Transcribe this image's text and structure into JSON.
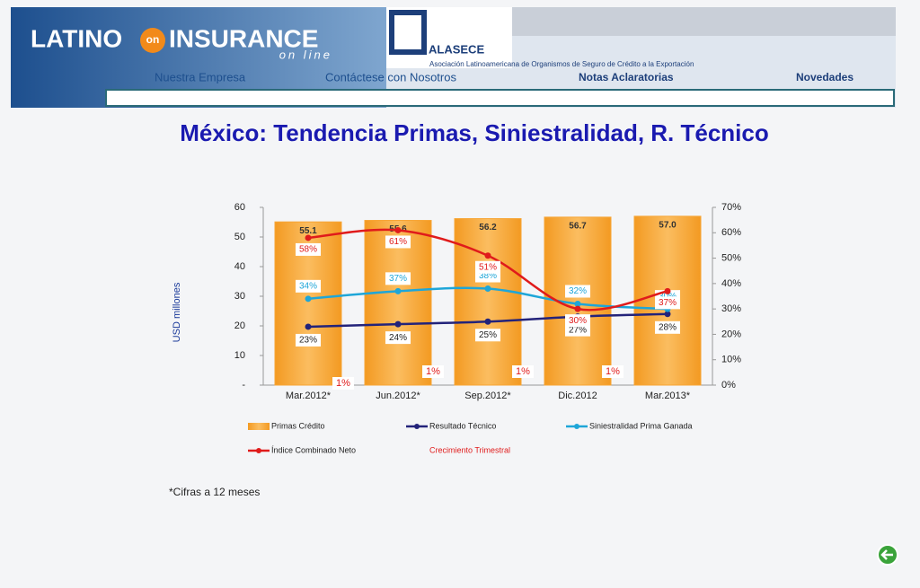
{
  "header": {
    "logo": [
      "LATINO",
      "on",
      "INSURANCE"
    ],
    "logo_sub": "on line",
    "partner": "ALASECE",
    "partner_sub": "Asociación Latinoamericana de Organismos de Seguro de Crédito a la Exportación",
    "nav": [
      "Nuestra Empresa",
      "Contáctese con Nosotros",
      "Notas Aclaratorias",
      "Novedades"
    ]
  },
  "chart_data": {
    "type": "combo",
    "title": "México: Tendencia Primas, Siniestralidad, R. Técnico",
    "ylabel": "USD millones",
    "categories": [
      "Mar.2012*",
      "Jun.2012*",
      "Sep.2012*",
      "Dic.2012",
      "Mar.2013*"
    ],
    "ylim": [
      0,
      60
    ],
    "yticks": [
      {
        "value": 0,
        "label": "-"
      },
      10,
      20,
      30,
      40,
      50,
      60
    ],
    "y2lim": [
      0,
      70
    ],
    "y2ticks": [
      {
        "value": 0,
        "label": "0%"
      },
      {
        "value": 10,
        "label": "10%"
      },
      {
        "value": 20,
        "label": "20%"
      },
      {
        "value": 30,
        "label": "30%"
      },
      {
        "value": 40,
        "label": "40%"
      },
      {
        "value": 50,
        "label": "50%"
      },
      {
        "value": 60,
        "label": "60%"
      },
      {
        "value": 70,
        "label": "70%"
      }
    ],
    "series": [
      {
        "name": "Primas Crédito",
        "kind": "bar",
        "color": "#f7a535",
        "values": [
          55.1,
          55.6,
          56.2,
          56.7,
          57.0
        ],
        "value_labels": [
          "55.1",
          "55.6",
          "56.2",
          "56.7",
          "57.0"
        ]
      },
      {
        "name": "Resultado Técnico",
        "kind": "line",
        "axis": "y2",
        "color": "#23237a",
        "values": [
          23,
          24,
          25,
          27,
          28
        ],
        "value_labels": [
          "23%",
          "24%",
          "25%",
          "27%",
          "28%"
        ]
      },
      {
        "name": "Siniestralidad Prima Ganada",
        "kind": "line",
        "axis": "y2",
        "color": "#1ea6d8",
        "values": [
          34,
          37,
          38,
          32,
          30
        ],
        "value_labels": [
          "34%",
          "37%",
          "38%",
          "32%",
          "30%"
        ]
      },
      {
        "name": "Índice Combinado Neto",
        "kind": "line",
        "axis": "y2",
        "color": "#e01b1b",
        "values": [
          58,
          61,
          51,
          30,
          37
        ],
        "value_labels": [
          "58%",
          "61%",
          "51%",
          "30%",
          "37%"
        ]
      },
      {
        "name": "Crecimiento Trimestral",
        "kind": "label",
        "axis": "y2",
        "color": "#e01b1b",
        "values": [
          1,
          1,
          1,
          1,
          null
        ],
        "value_labels": [
          "1%",
          "1%",
          "1%",
          "1%",
          null
        ]
      }
    ]
  },
  "footnote": "*Cifras a 12 meses"
}
